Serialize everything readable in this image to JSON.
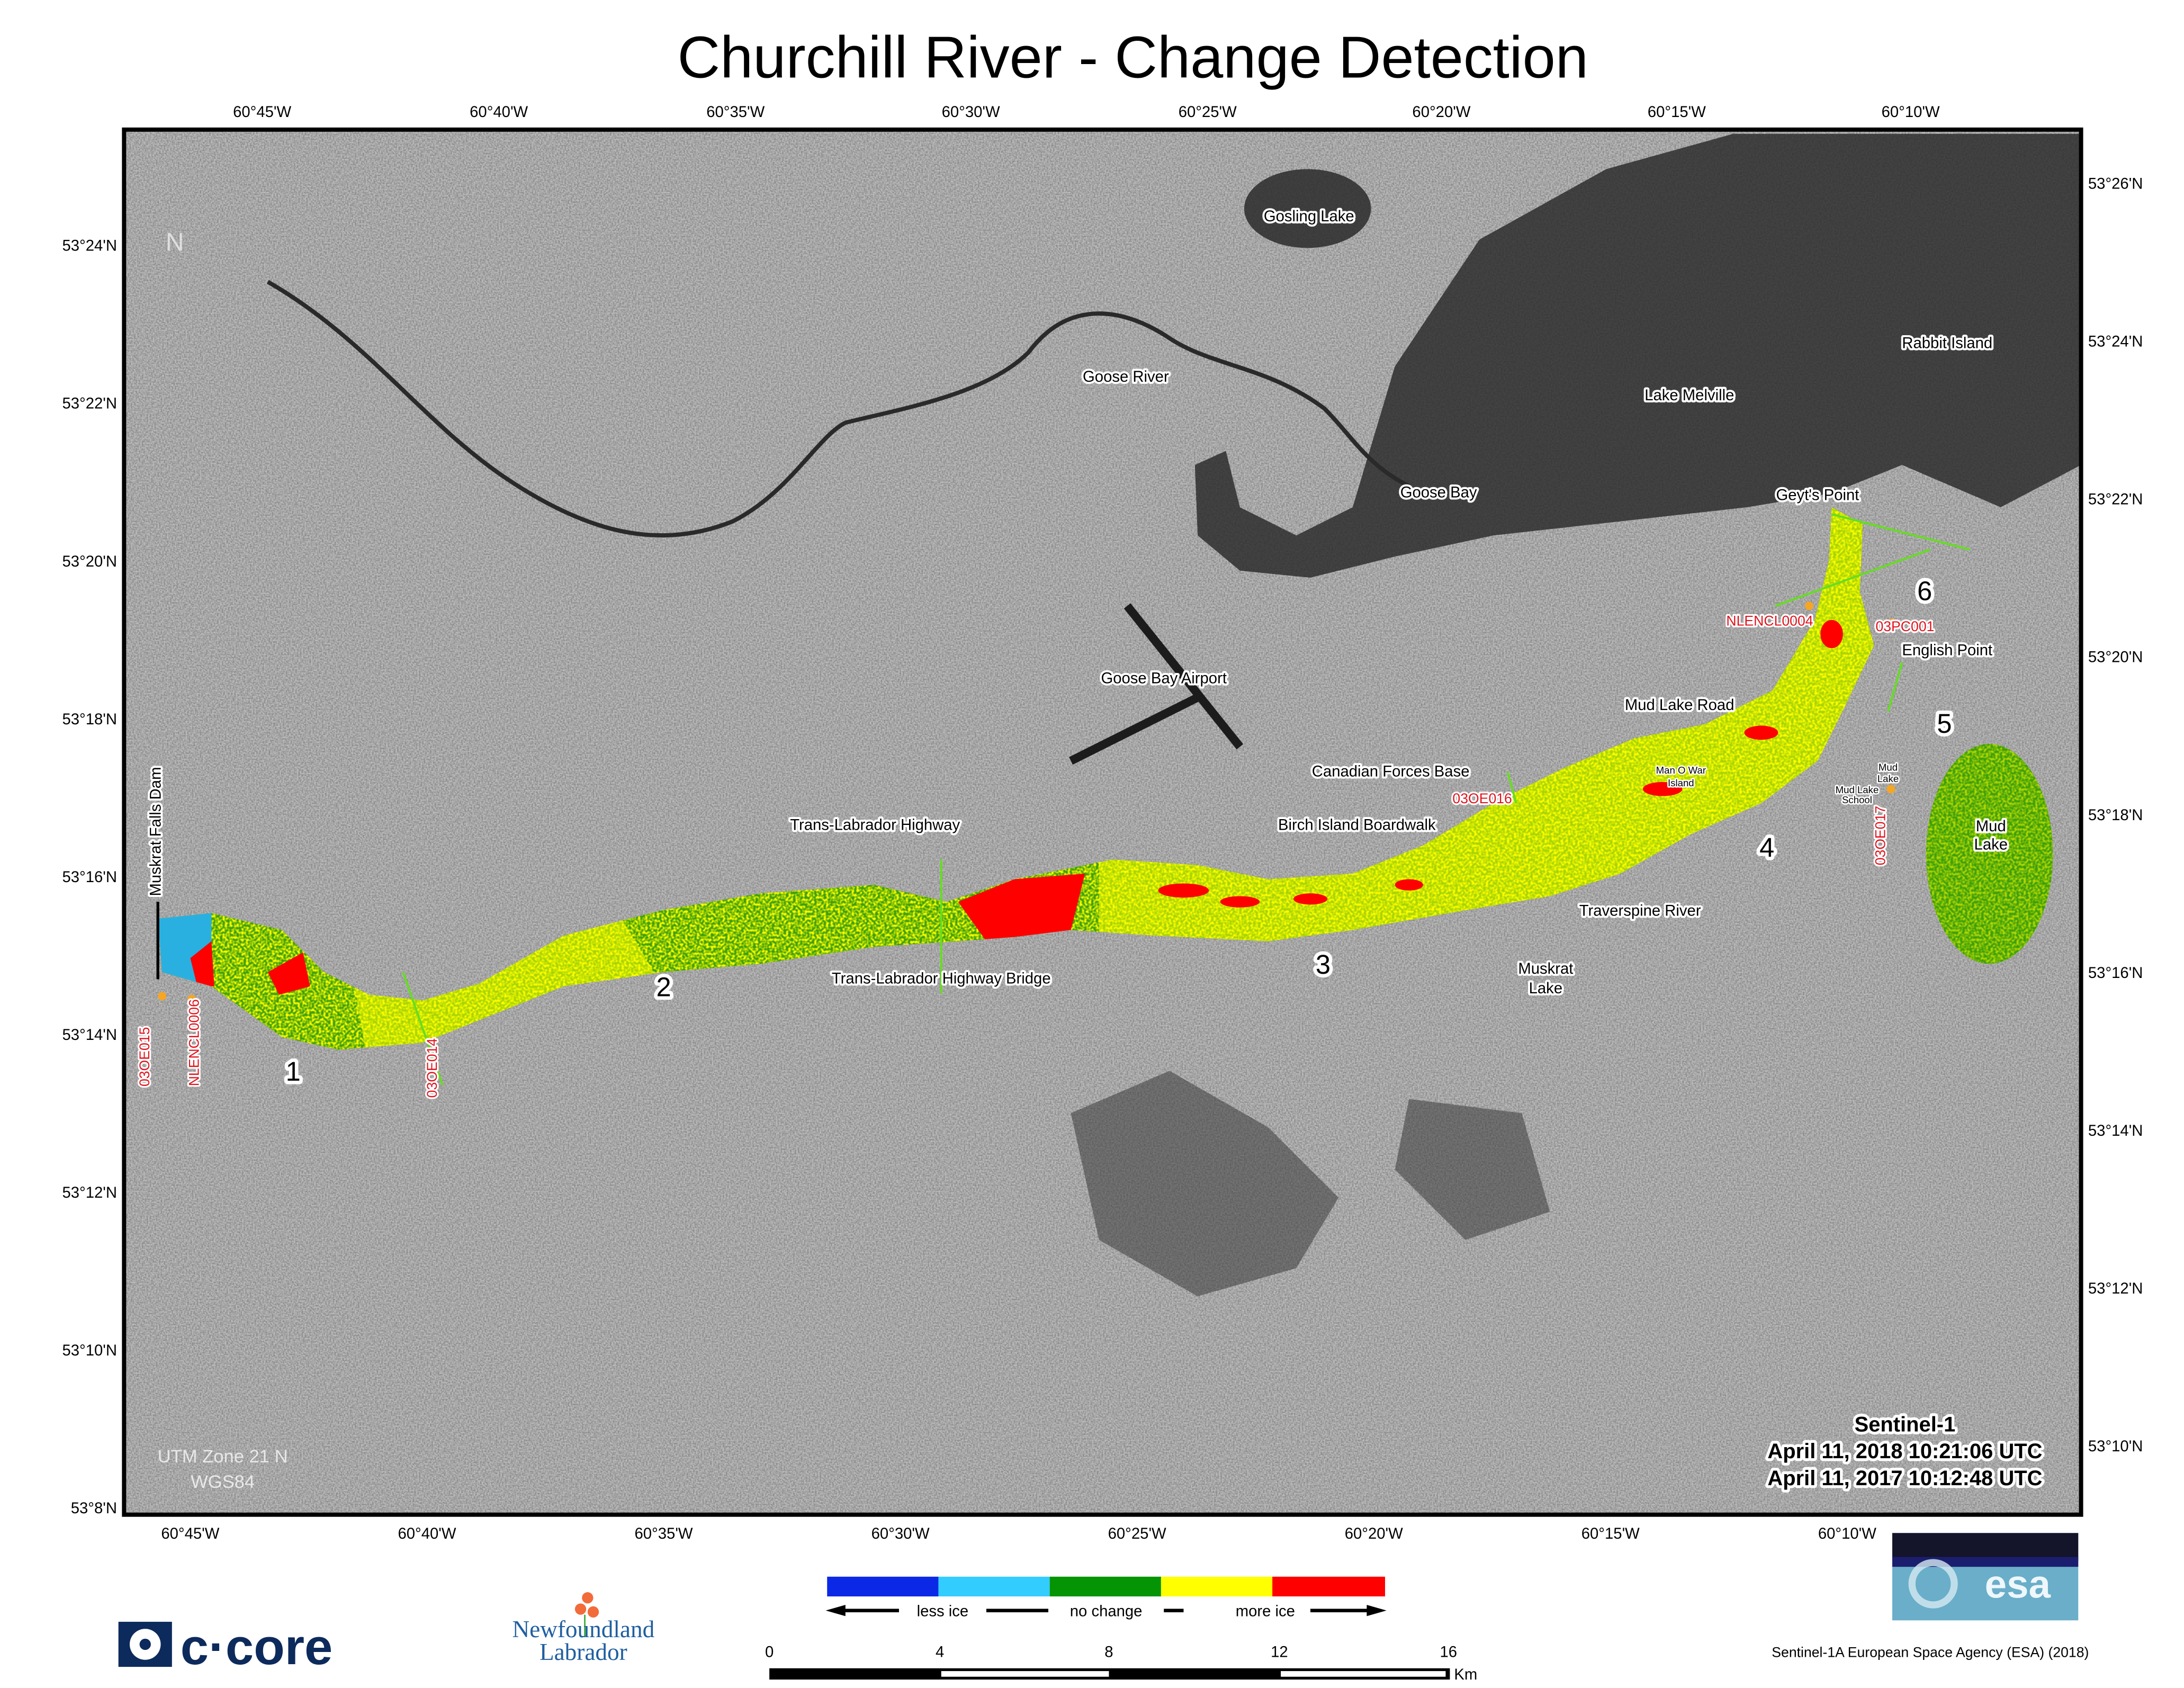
{
  "title": "Churchill River - Change Detection",
  "top_lon_ticks": [
    "60°45'W",
    "60°40'W",
    "60°35'W",
    "60°30'W",
    "60°25'W",
    "60°20'W",
    "60°15'W",
    "60°10'W"
  ],
  "bottom_lon_ticks": [
    "60°45'W",
    "60°40'W",
    "60°35'W",
    "60°30'W",
    "60°25'W",
    "60°20'W",
    "60°15'W",
    "60°10'W"
  ],
  "left_lat_ticks": [
    "53°24'N",
    "53°22'N",
    "53°20'N",
    "53°18'N",
    "53°16'N",
    "53°14'N",
    "53°12'N",
    "53°10'N",
    "53°8'N"
  ],
  "right_lat_ticks": [
    "53°26'N",
    "53°24'N",
    "53°22'N",
    "53°20'N",
    "53°18'N",
    "53°16'N",
    "53°14'N",
    "53°12'N",
    "53°10'N"
  ],
  "north_arrow": "N",
  "place_labels": {
    "gosling_lake": "Gosling Lake",
    "rabbit_island": "Rabbit Island",
    "goose_river": "Goose River",
    "lake_melville": "Lake Melville",
    "goose_bay": "Goose Bay",
    "geyts_point": "Geyt's Point",
    "english_point": "English Point",
    "goose_bay_airport": "Goose Bay Airport",
    "mud_lake_road": "Mud Lake Road",
    "canadian_forces_base": "Canadian Forces Base",
    "man_o_war_island_1": "Man O War",
    "man_o_war_island_2": "Island",
    "mud_lake_small_1": "Mud",
    "mud_lake_small_2": "Lake",
    "mud_lake_school_1": "Mud Lake",
    "mud_lake_school_2": "School",
    "mud_lake_1": "Mud",
    "mud_lake_2": "Lake",
    "trans_labrador_highway": "Trans-Labrador Highway",
    "birch_island_boardwalk": "Birch Island Boardwalk",
    "traverspine_river": "Traverspine River",
    "muskrat_falls_dam": "Muskrat Falls Dam",
    "trans_labrador_highway_bridge": "Trans-Labrador Highway Bridge",
    "muskrat_lake_1": "Muskrat",
    "muskrat_lake_2": "Lake"
  },
  "stations": [
    "03OE015",
    "NLENCL0006",
    "03OE014",
    "03OE016",
    "NLENCL0004",
    "03PC001",
    "03OE017"
  ],
  "section_numbers": [
    "1",
    "2",
    "3",
    "4",
    "5",
    "6"
  ],
  "projection": {
    "line1": "UTM Zone 21 N",
    "line2": "WGS84"
  },
  "acquisition": {
    "sensor": "Sentinel-1",
    "date1": "April 11, 2018 10:21:06 UTC",
    "date2": "April 11, 2017 10:12:48 UTC"
  },
  "legend": {
    "colors": [
      "#0a28e6",
      "#33ccff",
      "#049404",
      "#ffff00",
      "#ff0000"
    ],
    "less_ice": "less ice",
    "no_change": "no change",
    "more_ice": "more ice"
  },
  "scale_bar": {
    "ticks": [
      "0",
      "4",
      "8",
      "12",
      "16"
    ],
    "unit": "Km"
  },
  "logos": {
    "ccore": "c·core",
    "nl_1": "Newfoundland",
    "nl_2": "Labrador",
    "esa": "esa"
  },
  "credit": "Sentinel-1A European Space Agency (ESA) (2018)"
}
